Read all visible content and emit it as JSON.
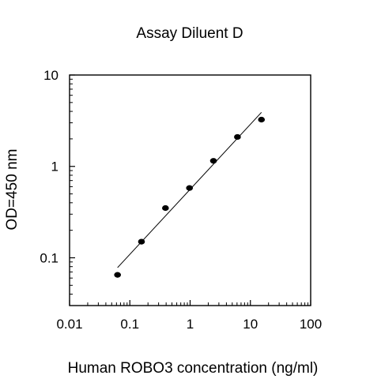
{
  "chart_data": {
    "type": "scatter",
    "title": "Assay Diluent D",
    "xlabel": "Human ROBO3 concentration (ng/ml)",
    "ylabel": "OD=450 nm",
    "xscale": "log",
    "yscale": "log",
    "xlim": [
      0.01,
      100
    ],
    "ylim": [
      0.03,
      10
    ],
    "xticks": [
      0.01,
      0.1,
      1,
      10,
      100
    ],
    "xtick_labels": [
      "0.01",
      "0.1",
      "1",
      "10",
      "100"
    ],
    "yticks": [
      0.1,
      1,
      10
    ],
    "ytick_labels": [
      "0.1",
      "1",
      "10"
    ],
    "grid": false,
    "series": [
      {
        "type": "points",
        "x": [
          0.0625,
          0.156,
          0.39,
          0.977,
          2.44,
          6.1,
          15.26
        ],
        "y": [
          0.065,
          0.15,
          0.35,
          0.58,
          1.15,
          2.1,
          3.25
        ]
      },
      {
        "type": "fit-line",
        "x": [
          0.0625,
          15.26
        ],
        "y": [
          0.078,
          3.9
        ]
      }
    ],
    "colors": {
      "points": "#000000",
      "line": "#000000",
      "axes": "#000000"
    }
  }
}
